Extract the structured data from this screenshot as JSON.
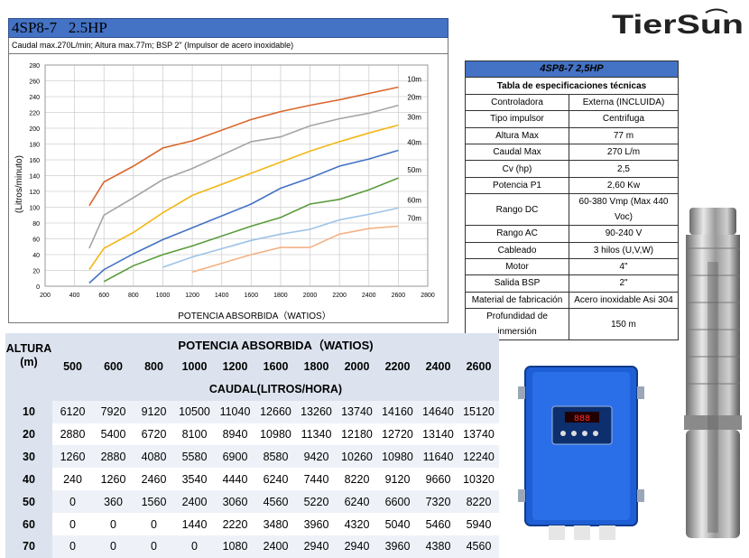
{
  "header": {
    "model": "4SP8-7   2.5HP",
    "subtitle": "Caudal max.270L/min;  Altura max.77m; BSP 2\" (Impulsor de acero inoxidable)"
  },
  "logo": {
    "text": "TierSun",
    "brand_color": "#222222"
  },
  "spec_table": {
    "title": "4SP8-7 2,5HP",
    "subtitle": "Tabla de especificaciones técnicas",
    "rows": [
      {
        "label": "Controladora",
        "value": "Externa (INCLUIDA)"
      },
      {
        "label": "Tipo impulsor",
        "value": "Centrifuga"
      },
      {
        "label": "Altura Max",
        "value": "77 m"
      },
      {
        "label": "Caudal Max",
        "value": "270  L/m"
      },
      {
        "label": "Cv (hp)",
        "value": "2,5"
      },
      {
        "label": "Potencia P1",
        "value": "2,60 Kw"
      },
      {
        "label": "Rango DC",
        "value": "60-380 Vmp (Max 440 Voc)"
      },
      {
        "label": "Rango AC",
        "value": "90-240 V"
      },
      {
        "label": "Cableado",
        "value": "3 hilos (U,V,W)"
      },
      {
        "label": "Motor",
        "value": "4\""
      },
      {
        "label": "Salida BSP",
        "value": "2\""
      },
      {
        "label": "Material de fabricación",
        "value": "Acero inoxidable Asi 304"
      },
      {
        "label": "Profundidad de inmersión",
        "value": "150 m"
      }
    ]
  },
  "data_table": {
    "altura_label": "ALTURA",
    "altura_unit": "(m)",
    "potencia_label": "POTENCIA ABSORBIDA（WATIOS)",
    "caudal_label": "CAUDAL(LITROS/HORA)",
    "power_columns": [
      "500",
      "600",
      "800",
      "1000",
      "1200",
      "1600",
      "1800",
      "2000",
      "2200",
      "2400",
      "2600"
    ],
    "rows": [
      {
        "altura": "10",
        "values": [
          "6120",
          "7920",
          "9120",
          "10500",
          "11040",
          "12660",
          "13260",
          "13740",
          "14160",
          "14640",
          "15120"
        ]
      },
      {
        "altura": "20",
        "values": [
          "2880",
          "5400",
          "6720",
          "8100",
          "8940",
          "10980",
          "11340",
          "12180",
          "12720",
          "13140",
          "13740"
        ]
      },
      {
        "altura": "30",
        "values": [
          "1260",
          "2880",
          "4080",
          "5580",
          "6900",
          "8580",
          "9420",
          "10260",
          "10980",
          "11640",
          "12240"
        ]
      },
      {
        "altura": "40",
        "values": [
          "240",
          "1260",
          "2460",
          "3540",
          "4440",
          "6240",
          "7440",
          "8220",
          "9120",
          "9660",
          "10320"
        ]
      },
      {
        "altura": "50",
        "values": [
          "0",
          "360",
          "1560",
          "2400",
          "3060",
          "4560",
          "5220",
          "6240",
          "6600",
          "7320",
          "8220"
        ]
      },
      {
        "altura": "60",
        "values": [
          "0",
          "0",
          "0",
          "1440",
          "2220",
          "3480",
          "3960",
          "4320",
          "5040",
          "5460",
          "5940"
        ]
      },
      {
        "altura": "70",
        "values": [
          "0",
          "0",
          "0",
          "0",
          "1080",
          "2400",
          "2940",
          "2940",
          "3960",
          "4380",
          "4560"
        ]
      }
    ]
  },
  "controller": {
    "display": "888",
    "body_color": "#1e5fd6"
  },
  "chart_data": {
    "type": "line",
    "xlabel": "POTENCIA ABSORBIDA（WATIOS）",
    "ylabel": "(Litros/minuto)",
    "xlim": [
      200,
      2800
    ],
    "ylim": [
      0,
      280
    ],
    "xticks": [
      "200",
      "400",
      "600",
      "800",
      "1000",
      "1200",
      "1400",
      "1600",
      "1800",
      "2000",
      "2200",
      "2400",
      "2600",
      "2800"
    ],
    "yticks": [
      "0",
      "20",
      "40",
      "60",
      "80",
      "100",
      "120",
      "140",
      "160",
      "180",
      "200",
      "220",
      "240",
      "260",
      "280"
    ],
    "grid": true,
    "series": [
      {
        "name": "10m",
        "color": "#d9662b",
        "x": [
          500,
          600,
          800,
          1000,
          1200,
          1600,
          1800,
          2000,
          2200,
          2400,
          2600
        ],
        "y": [
          102,
          132,
          152,
          175,
          184,
          211,
          221,
          229,
          236,
          244,
          252
        ]
      },
      {
        "name": "20m",
        "color": "#a5a5a5",
        "x": [
          500,
          600,
          800,
          1000,
          1200,
          1600,
          1800,
          2000,
          2200,
          2400,
          2600
        ],
        "y": [
          48,
          90,
          112,
          135,
          149,
          183,
          189,
          203,
          212,
          219,
          229
        ]
      },
      {
        "name": "30m",
        "color": "#f2b716",
        "x": [
          500,
          600,
          800,
          1000,
          1200,
          1600,
          1800,
          2000,
          2200,
          2400,
          2600
        ],
        "y": [
          21,
          48,
          68,
          93,
          115,
          143,
          157,
          171,
          183,
          194,
          204
        ]
      },
      {
        "name": "40m",
        "color": "#4472c4",
        "x": [
          500,
          600,
          800,
          1000,
          1200,
          1600,
          1800,
          2000,
          2200,
          2400,
          2600
        ],
        "y": [
          4,
          21,
          41,
          59,
          74,
          104,
          124,
          137,
          152,
          161,
          172
        ]
      },
      {
        "name": "50m",
        "color": "#5b9b3c",
        "x": [
          600,
          800,
          1000,
          1200,
          1600,
          1800,
          2000,
          2200,
          2400,
          2600
        ],
        "y": [
          6,
          26,
          40,
          51,
          76,
          87,
          104,
          110,
          122,
          137
        ]
      },
      {
        "name": "60m",
        "color": "#9dc3e6",
        "x": [
          1000,
          1200,
          1600,
          1800,
          2000,
          2200,
          2400,
          2600
        ],
        "y": [
          24,
          37,
          58,
          66,
          72,
          84,
          91,
          99
        ]
      },
      {
        "name": "70m",
        "color": "#f4b183",
        "x": [
          1200,
          1600,
          1800,
          2000,
          2200,
          2400,
          2600
        ],
        "y": [
          18,
          40,
          49,
          49,
          66,
          73,
          76
        ]
      }
    ]
  }
}
